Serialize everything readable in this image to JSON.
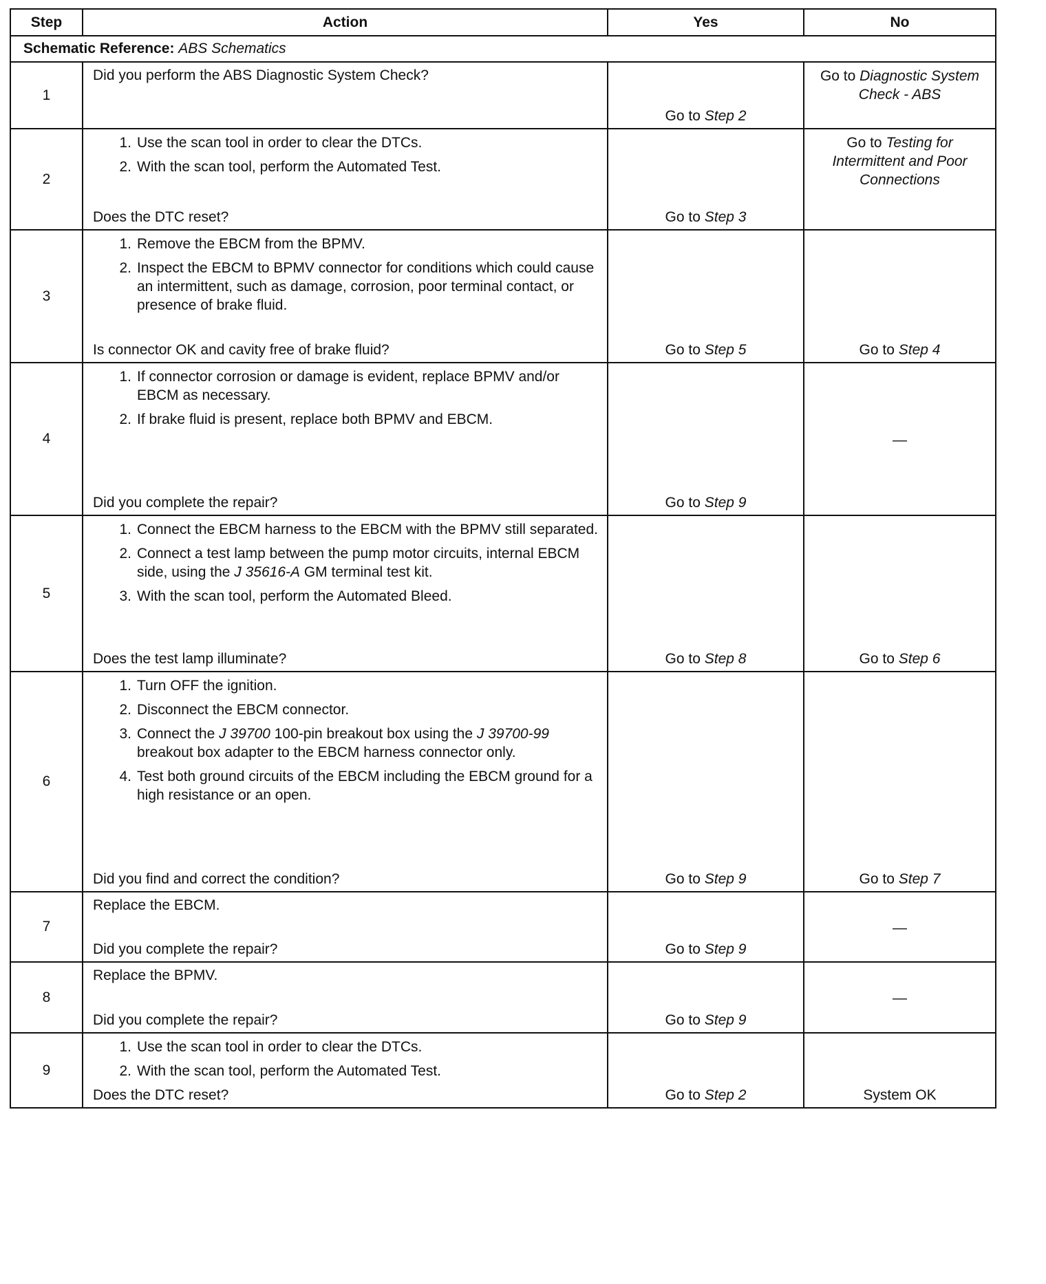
{
  "header": {
    "step": "Step",
    "action": "Action",
    "yes": "Yes",
    "no": "No"
  },
  "schematic": {
    "label": "Schematic Reference:",
    "value": "ABS Schematics"
  },
  "rows": [
    {
      "step": "1",
      "lead": "Did you perform the ABS Diagnostic System Check?",
      "items": [],
      "question": "",
      "yes": [
        {
          "t": "Go to "
        },
        {
          "t": "Step 2",
          "i": true
        }
      ],
      "no": [
        {
          "t": "Go to "
        },
        {
          "t": "Diagnostic System Check - ABS",
          "i": true
        }
      ]
    },
    {
      "step": "2",
      "lead": "",
      "items": [
        [
          {
            "t": "Use the scan tool in order to clear the DTCs."
          }
        ],
        [
          {
            "t": "With the scan tool, perform the Automated Test."
          }
        ]
      ],
      "question": "Does the DTC reset?",
      "yes": [
        {
          "t": "Go to "
        },
        {
          "t": "Step 3",
          "i": true
        }
      ],
      "no": [
        {
          "t": "Go to "
        },
        {
          "t": "Testing for Intermittent and Poor Connections",
          "i": true
        }
      ]
    },
    {
      "step": "3",
      "lead": "",
      "items": [
        [
          {
            "t": "Remove the EBCM from the BPMV."
          }
        ],
        [
          {
            "t": "Inspect the EBCM to BPMV connector for conditions which could cause an intermittent, such as damage, corrosion, poor terminal contact, or presence of brake fluid."
          }
        ]
      ],
      "question": "Is connector OK and cavity free of brake fluid?",
      "yes": [
        {
          "t": "Go to "
        },
        {
          "t": "Step 5",
          "i": true
        }
      ],
      "no": [
        {
          "t": "Go to "
        },
        {
          "t": "Step 4",
          "i": true
        }
      ]
    },
    {
      "step": "4",
      "lead": "",
      "items": [
        [
          {
            "t": "If connector corrosion or damage is evident, replace BPMV and/or EBCM as necessary."
          }
        ],
        [
          {
            "t": "If brake fluid is present, replace both BPMV and EBCM."
          }
        ]
      ],
      "question": "Did you complete the repair?",
      "yes": [
        {
          "t": "Go to "
        },
        {
          "t": "Step 9",
          "i": true
        }
      ],
      "no": [
        {
          "t": "—"
        }
      ]
    },
    {
      "step": "5",
      "lead": "",
      "items": [
        [
          {
            "t": "Connect the EBCM harness to the EBCM with the BPMV still separated."
          }
        ],
        [
          {
            "t": "Connect a test lamp between the pump motor circuits, internal EBCM side, using the "
          },
          {
            "t": "J 35616-A",
            "i": true
          },
          {
            "t": " GM terminal test kit."
          }
        ],
        [
          {
            "t": "With the scan tool, perform the Automated Bleed."
          }
        ]
      ],
      "question": "Does the test lamp illuminate?",
      "yes": [
        {
          "t": "Go to "
        },
        {
          "t": "Step 8",
          "i": true
        }
      ],
      "no": [
        {
          "t": "Go to "
        },
        {
          "t": "Step 6",
          "i": true
        }
      ]
    },
    {
      "step": "6",
      "lead": "",
      "items": [
        [
          {
            "t": "Turn OFF the ignition."
          }
        ],
        [
          {
            "t": "Disconnect the EBCM connector."
          }
        ],
        [
          {
            "t": "Connect the "
          },
          {
            "t": "J 39700",
            "i": true
          },
          {
            "t": " 100-pin breakout box using the "
          },
          {
            "t": "J 39700-99",
            "i": true
          },
          {
            "t": " breakout box adapter to the EBCM harness connector only."
          }
        ],
        [
          {
            "t": "Test both ground circuits of the EBCM including the EBCM ground for a high resistance or an open."
          }
        ]
      ],
      "question": "Did you find and correct the condition?",
      "yes": [
        {
          "t": "Go to "
        },
        {
          "t": "Step 9",
          "i": true
        }
      ],
      "no": [
        {
          "t": "Go to "
        },
        {
          "t": "Step 7",
          "i": true
        }
      ]
    },
    {
      "step": "7",
      "lead": "Replace the EBCM.",
      "items": [],
      "question": "Did you complete the repair?",
      "yes": [
        {
          "t": "Go to "
        },
        {
          "t": "Step 9",
          "i": true
        }
      ],
      "no": [
        {
          "t": "—"
        }
      ]
    },
    {
      "step": "8",
      "lead": "Replace the BPMV.",
      "items": [],
      "question": "Did you complete the repair?",
      "yes": [
        {
          "t": "Go to "
        },
        {
          "t": "Step 9",
          "i": true
        }
      ],
      "no": [
        {
          "t": "—"
        }
      ]
    },
    {
      "step": "9",
      "lead": "",
      "items": [
        [
          {
            "t": "Use the scan tool in order to clear the DTCs."
          }
        ],
        [
          {
            "t": "With the scan tool, perform the Automated Test."
          }
        ]
      ],
      "question": "Does the DTC reset?",
      "yes": [
        {
          "t": "Go to "
        },
        {
          "t": "Step 2",
          "i": true
        }
      ],
      "no": [
        {
          "t": "System OK"
        }
      ]
    }
  ]
}
